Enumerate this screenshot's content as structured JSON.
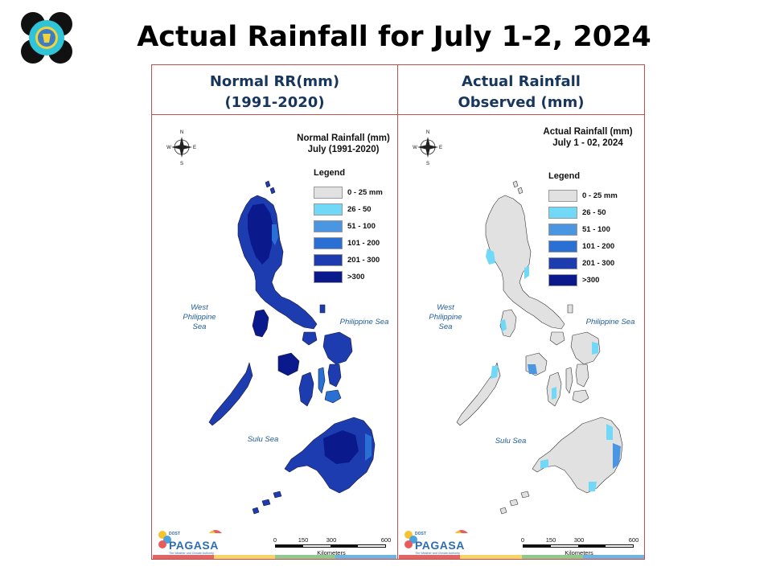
{
  "slide": {
    "title": "Actual Rainfall for July 1-2, 2024"
  },
  "headers": {
    "left": [
      "Normal RR(mm)",
      "(1991-2020)"
    ],
    "right": [
      "Actual Rainfall",
      "Observed (mm)"
    ]
  },
  "maps": {
    "left": {
      "title": [
        "Normal Rainfall (mm)",
        "July (1991-2020)"
      ],
      "legend_title": "Legend",
      "legend_labels": [
        "0 - 25 mm",
        "26 - 50",
        "51 - 100",
        "101 - 200",
        "201 - 300",
        ">300"
      ],
      "seas": {
        "west": [
          "West",
          "Philippine Sea"
        ],
        "east": "Philippine Sea",
        "south": "Sulu Sea"
      }
    },
    "right": {
      "title": [
        "Actual Rainfall (mm)",
        "July 1 - 02, 2024"
      ],
      "legend_title": "Legend",
      "legend_labels": [
        "0 - 25 mm",
        "26 - 50",
        "51 - 100",
        "101 - 200",
        "201 - 300",
        ">300"
      ],
      "seas": {
        "west": [
          "West",
          "Philippine Sea"
        ],
        "east": "Philippine Sea",
        "south": "Sulu Sea"
      }
    }
  },
  "legend_colors": [
    "#e1e1e1",
    "#72d8f7",
    "#4a96e3",
    "#2a6fd4",
    "#1c3cb0",
    "#0a1a8c"
  ],
  "compass": {
    "n": "N",
    "s": "S",
    "e": "E",
    "w": "W"
  },
  "scale_bar": {
    "ticks": [
      "0",
      "150",
      "300",
      "600"
    ],
    "units": "Kilometers"
  },
  "branding": {
    "agency": "PAGASA",
    "small_text": "DOST",
    "tagline": "The Weather and Climate Authority"
  },
  "strip_colors": [
    "#e06666",
    "#f6d36b",
    "#8fc98f",
    "#6fb3e0"
  ]
}
